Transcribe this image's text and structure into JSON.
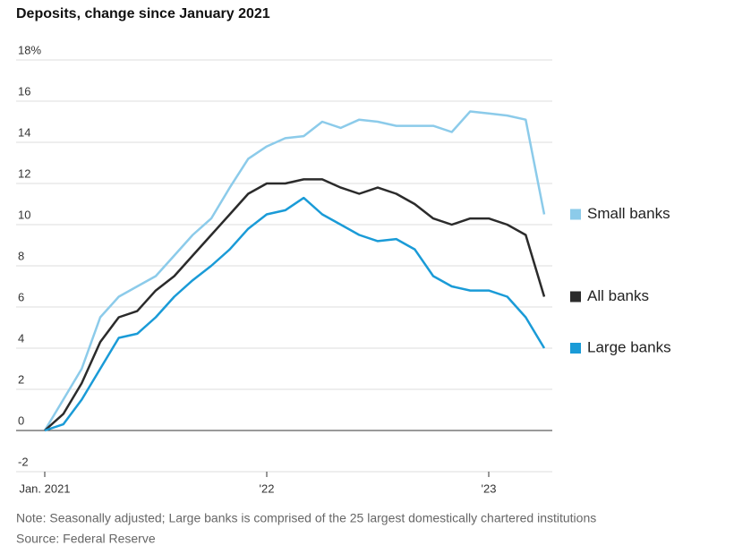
{
  "chart_data": {
    "type": "line",
    "title": "Deposits, change since January 2021",
    "note": "Note: Seasonally adjusted; Large banks is comprised of the 25 largest domestically chartered institutions",
    "source": "Source: Federal Reserve",
    "x": [
      "2021-01",
      "2021-02",
      "2021-03",
      "2021-04",
      "2021-05",
      "2021-06",
      "2021-07",
      "2021-08",
      "2021-09",
      "2021-10",
      "2021-11",
      "2021-12",
      "2022-01",
      "2022-02",
      "2022-03",
      "2022-04",
      "2022-05",
      "2022-06",
      "2022-07",
      "2022-08",
      "2022-09",
      "2022-10",
      "2022-11",
      "2022-12",
      "2023-01",
      "2023-02",
      "2023-03",
      "2023-04"
    ],
    "series": [
      {
        "name": "Small banks",
        "color": "#8ccbea",
        "values": [
          0,
          1.5,
          3,
          5.5,
          6.5,
          7,
          7.5,
          8.5,
          9.5,
          10.3,
          11.8,
          13.2,
          13.8,
          14.2,
          14.3,
          15,
          14.7,
          15.1,
          15,
          14.8,
          14.8,
          14.8,
          14.5,
          15.5,
          15.4,
          15.3,
          15.1,
          10.5
        ]
      },
      {
        "name": "All banks",
        "color": "#2b2b2b",
        "values": [
          0,
          0.8,
          2.3,
          4.3,
          5.5,
          5.8,
          6.8,
          7.5,
          8.5,
          9.5,
          10.5,
          11.5,
          12,
          12,
          12.2,
          12.2,
          11.8,
          11.5,
          11.8,
          11.5,
          11,
          10.3,
          10,
          10.3,
          10.3,
          10,
          9.5,
          6.5
        ]
      },
      {
        "name": "Large banks",
        "color": "#1a9bd7",
        "values": [
          0,
          0.3,
          1.5,
          3,
          4.5,
          4.7,
          5.5,
          6.5,
          7.3,
          8,
          8.8,
          9.8,
          10.5,
          10.7,
          11.3,
          10.5,
          10,
          9.5,
          9.2,
          9.3,
          8.8,
          7.5,
          7,
          6.8,
          6.8,
          6.5,
          5.5,
          4
        ]
      }
    ],
    "ylim": [
      -2,
      18
    ],
    "yticks": [
      -2,
      0,
      2,
      4,
      6,
      8,
      10,
      12,
      14,
      16,
      {
        "value": 18,
        "label": "18%"
      }
    ],
    "xticks": [
      {
        "value": "2021-01",
        "label": "Jan. 2021"
      },
      {
        "value": "2022-01",
        "label": "'22"
      },
      {
        "value": "2023-01",
        "label": "'23"
      }
    ],
    "grid": true,
    "legend": "right"
  }
}
